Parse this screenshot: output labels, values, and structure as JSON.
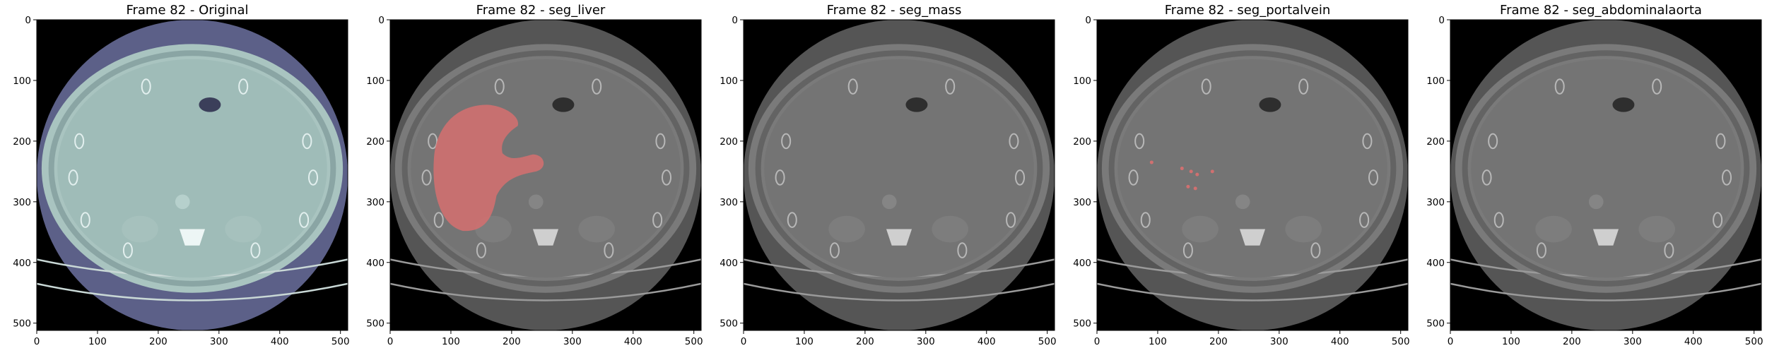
{
  "figure": {
    "panels": [
      {
        "title": "Frame 82 - Original",
        "mode": "original",
        "overlay": null
      },
      {
        "title": "Frame 82 - seg_liver",
        "mode": "grayscale",
        "overlay": "liver"
      },
      {
        "title": "Frame 82 - seg_mass",
        "mode": "grayscale",
        "overlay": null
      },
      {
        "title": "Frame 82 - seg_portalvein",
        "mode": "grayscale",
        "overlay": "portalvein"
      },
      {
        "title": "Frame 82 - seg_abdominalaorta",
        "mode": "grayscale",
        "overlay": null
      }
    ],
    "x_ticks": [
      "0",
      "100",
      "200",
      "300",
      "400",
      "500"
    ],
    "y_ticks": [
      "0",
      "100",
      "200",
      "300",
      "400",
      "500"
    ],
    "x_tick_values": [
      0,
      100,
      200,
      300,
      400,
      500
    ],
    "y_tick_values": [
      0,
      100,
      200,
      300,
      400,
      500
    ],
    "image_size": 512,
    "colors": {
      "original_body": "#a9c4c0",
      "original_ring": "#5c6088",
      "gray_body": "#7a7a7a",
      "gray_ring": "#555555",
      "background": "#000000",
      "overlay": "#d07070"
    }
  }
}
